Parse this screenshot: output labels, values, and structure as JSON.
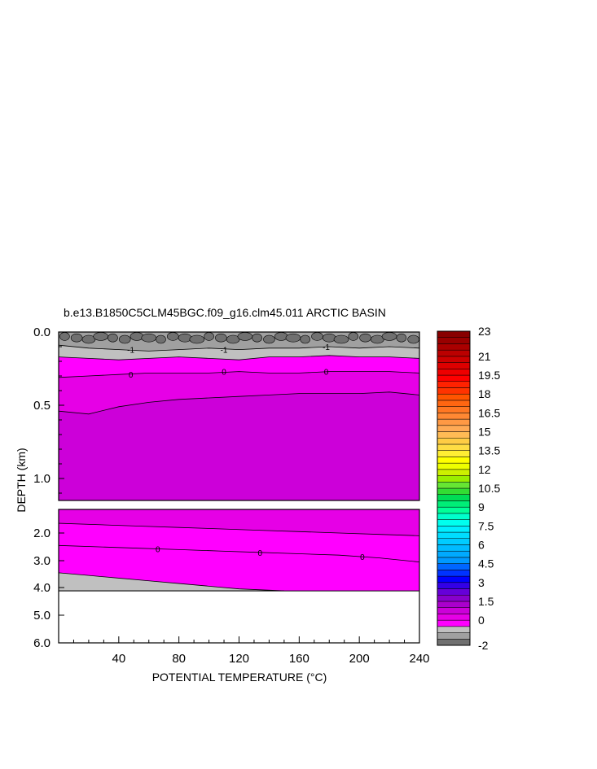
{
  "chart_data": {
    "type": "heatmap",
    "title": "b.e13.B1850C5CLM45BGC.f09_g16.clm45.011 ARCTIC BASIN",
    "xlabel": "POTENTIAL TEMPERATURE (°C)",
    "ylabel": "DEPTH (km)",
    "x_range": [
      0,
      240
    ],
    "x_ticks": [
      "40",
      "80",
      "120",
      "160",
      "200",
      "240"
    ],
    "upper_panel": {
      "y_range": [
        0.0,
        1.15
      ],
      "y_ticks": [
        "0.0",
        "0.5",
        "1.0"
      ]
    },
    "lower_panel": {
      "y_range": [
        1.15,
        6.0
      ],
      "y_ticks": [
        "2.0",
        "3.0",
        "4.0",
        "5.0",
        "6.0"
      ]
    },
    "contour_labels": [
      "-1",
      "-1",
      "-1",
      "0",
      "0",
      "0",
      "0",
      "0",
      "0"
    ],
    "contours_upper": [
      {
        "level": -1,
        "depth": [
          0.09,
          0.11,
          0.12,
          0.13,
          0.12,
          0.11,
          0.12,
          0.11,
          0.11,
          0.1,
          0.11,
          0.1,
          0.11
        ]
      },
      {
        "level": -0.5,
        "depth": [
          0.17,
          0.18,
          0.19,
          0.18,
          0.17,
          0.18,
          0.19,
          0.17,
          0.17,
          0.16,
          0.17,
          0.17,
          0.18
        ]
      },
      {
        "level": 0,
        "depth": [
          0.31,
          0.3,
          0.29,
          0.28,
          0.28,
          0.28,
          0.27,
          0.28,
          0.28,
          0.27,
          0.27,
          0.27,
          0.28
        ]
      },
      {
        "level": 0.5,
        "depth": [
          0.54,
          0.56,
          0.51,
          0.48,
          0.46,
          0.45,
          0.44,
          0.43,
          0.42,
          0.42,
          0.42,
          0.41,
          0.43
        ]
      }
    ],
    "contours_lower": [
      {
        "level": 0.5,
        "depth": [
          1.65,
          1.7,
          1.75,
          1.8,
          1.85,
          1.9,
          1.95,
          2.0,
          2.05,
          2.1
        ]
      },
      {
        "level": 0,
        "depth": [
          2.45,
          2.5,
          2.55,
          2.6,
          2.65,
          2.7,
          2.75,
          2.8,
          2.9,
          3.05
        ]
      }
    ],
    "seafloor_depth": [
      3.45,
      3.55,
      3.65,
      3.75,
      3.85,
      3.95,
      4.05,
      4.12
    ],
    "seafloor_x": [
      0,
      20,
      40,
      60,
      80,
      100,
      120,
      150
    ],
    "max_data_depth": 4.12,
    "colorbar": {
      "levels": [
        -2,
        -1.5,
        -1,
        -0.5,
        0,
        0.5,
        1,
        1.5,
        2,
        2.5,
        3,
        3.5,
        4,
        4.5,
        5,
        5.5,
        6,
        6.5,
        7,
        7.5,
        8,
        8.5,
        9,
        9.5,
        10,
        10.5,
        11,
        11.5,
        12,
        12.5,
        13,
        13.5,
        14,
        14.5,
        15,
        15.5,
        16,
        16.5,
        17,
        17.5,
        18,
        18.5,
        19,
        19.5,
        20,
        20.5,
        21,
        21.5,
        22,
        22.5,
        23
      ],
      "colors": [
        "#707070",
        "#a0a0a0",
        "#c0c0c0",
        "#ff00ff",
        "#e600e6",
        "#cc00d9",
        "#aa00cc",
        "#8800cc",
        "#6600d9",
        "#3300e6",
        "#0000ff",
        "#0033ff",
        "#0066ff",
        "#0099ff",
        "#00aaff",
        "#00bbff",
        "#00ccff",
        "#00ddff",
        "#00eeff",
        "#00ffee",
        "#00ffcc",
        "#00ff99",
        "#00ee77",
        "#00dd55",
        "#33dd33",
        "#66e633",
        "#99ee00",
        "#ccf000",
        "#eeff00",
        "#ffff00",
        "#ffee33",
        "#ffdd44",
        "#ffcc44",
        "#ffbb55",
        "#ffaa55",
        "#ff9944",
        "#ff8833",
        "#ff7722",
        "#ff6611",
        "#ff5500",
        "#ff3300",
        "#ff2200",
        "#ff0000",
        "#ee0000",
        "#dd0000",
        "#cc0000",
        "#bb0000",
        "#aa0000",
        "#990000",
        "#880000"
      ],
      "labels": [
        "23",
        "21",
        "19.5",
        "18",
        "16.5",
        "15",
        "13.5",
        "12",
        "10.5",
        "9",
        "7.5",
        "6",
        "4.5",
        "3",
        "1.5",
        "0",
        "-2"
      ]
    }
  }
}
